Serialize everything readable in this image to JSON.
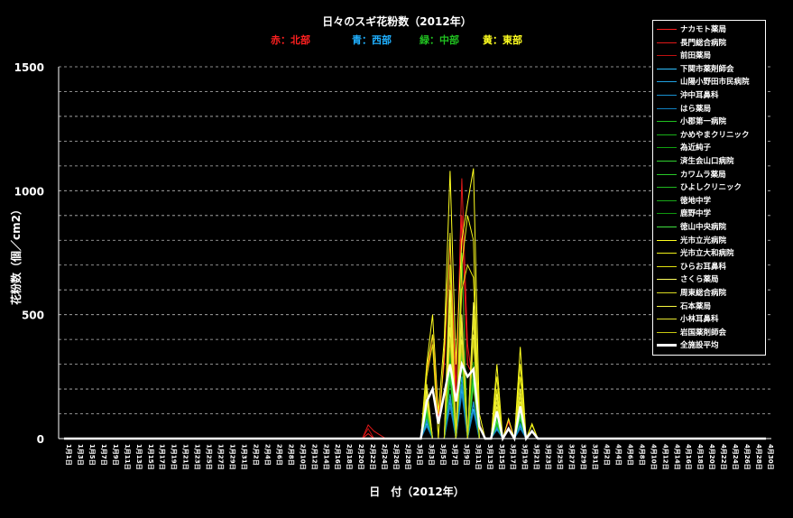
{
  "chart_data": {
    "type": "line",
    "title": "日々のスギ花粉数（2012年）",
    "region_labels": [
      {
        "text": "赤：北部",
        "color": "#ff2020"
      },
      {
        "text": "青：西部",
        "color": "#20b0ff"
      },
      {
        "text": "緑：中部",
        "color": "#20c020"
      },
      {
        "text": "黄：東部",
        "color": "#ffff20"
      }
    ],
    "xlabel": "日　付（2012年）",
    "ylabel": "花粉数（個／cm2）",
    "ylim": [
      0,
      1500
    ],
    "yticks": [
      0,
      500,
      1000,
      1500
    ],
    "grid": "dashed horizontal every 100",
    "legend_position": "top-right",
    "x_tick_labels": [
      "1月1日",
      "1月3日",
      "1月5日",
      "1月7日",
      "1月9日",
      "1月11日",
      "1月13日",
      "1月15日",
      "1月17日",
      "1月19日",
      "1月21日",
      "1月23日",
      "1月25日",
      "1月27日",
      "1月29日",
      "1月31日",
      "2月2日",
      "2月4日",
      "2月6日",
      "2月8日",
      "2月10日",
      "2月12日",
      "2月14日",
      "2月16日",
      "2月18日",
      "2月20日",
      "2月22日",
      "2月24日",
      "2月26日",
      "2月28日",
      "3月1日",
      "3月3日",
      "3月5日",
      "3月7日",
      "3月9日",
      "3月11日",
      "3月13日",
      "3月15日",
      "3月17日",
      "3月19日",
      "3月21日",
      "3月23日",
      "3月25日",
      "3月27日",
      "3月29日",
      "3月31日",
      "4月2日",
      "4月4日",
      "4月6日",
      "4月8日",
      "4月10日",
      "4月12日",
      "4月14日",
      "4月16日",
      "4月18日",
      "4月20日",
      "4月22日",
      "4月24日",
      "4月26日",
      "4月28日",
      "4月30日"
    ],
    "series": [
      {
        "name": "ナカモト薬局",
        "color": "#ff2020",
        "points": {
          "2月22日": 20,
          "3月3日": 250,
          "3月4日": 420,
          "3月5日": 80,
          "3月6日": 300,
          "3月7日": 800,
          "3月8日": 200,
          "3月9日": 900,
          "3月10日": 300,
          "3月11日": 250,
          "3月12日": 60,
          "3月15日": 90,
          "3月17日": 70,
          "3月19日": 110
        }
      },
      {
        "name": "長門総合病院",
        "color": "#e01818",
        "points": {
          "2月22日": 55,
          "2月23日": 30,
          "2月24日": 15,
          "3月3日": 200,
          "3月4": 0,
          "3月7日": 620,
          "3月8日": 150,
          "3月9日": 1050,
          "3月10日": 380,
          "3月11日": 200,
          "3月15日": 80,
          "3月19日": 90
        }
      },
      {
        "name": "前田薬局",
        "color": "#c01010",
        "points": {
          "2月22日": 40,
          "3月3日": 180,
          "3月7日": 500,
          "3月9日": 700,
          "3月11日": 220,
          "3月15日": 70,
          "3月19日": 80
        }
      },
      {
        "name": "下関市薬剤師会",
        "color": "#30c0ff",
        "points": {
          "3月3日": 60,
          "3月7日": 150,
          "3月9日": 200,
          "3月11日": 120,
          "3月15日": 40,
          "3月19日": 50
        }
      },
      {
        "name": "山陽小野田市民病院",
        "color": "#20a0e0",
        "points": {
          "3月3日": 80,
          "3月7日": 180,
          "3月9日": 250,
          "3月11日": 150,
          "3月15日": 50,
          "3月19日": 60
        }
      },
      {
        "name": "沖中耳鼻科",
        "color": "#1890d0",
        "points": {
          "3月3日": 70,
          "3月7日": 160,
          "3月9日": 220,
          "3月11日": 140,
          "3月15日": 45,
          "3月19日": 55
        }
      },
      {
        "name": "はら薬局",
        "color": "#1080c0",
        "points": {
          "3月3日": 50,
          "3月7日": 130,
          "3月9日": 180,
          "3月11日": 110,
          "3月15日": 35,
          "3月19日": 40
        }
      },
      {
        "name": "小郡第一病院",
        "color": "#20c020",
        "points": {
          "3月3日": 150,
          "3月7日": 350,
          "3月9日": 750,
          "3月11日": 300,
          "3月15日": 80,
          "3月19日": 100
        }
      },
      {
        "name": "かめやまクリニック",
        "color": "#18b018",
        "points": {
          "3月3日": 120,
          "3月7日": 300,
          "3月9日": 400,
          "3月11日": 250,
          "3月15日": 70,
          "3月19日": 90
        }
      },
      {
        "name": "為近純子",
        "color": "#10a010",
        "points": {
          "3月3日": 100,
          "3月7日": 280,
          "3月9日": 350,
          "3月11日": 220,
          "3月15日": 60,
          "3月19日": 80
        }
      },
      {
        "name": "済生会山口病院",
        "color": "#30d030",
        "points": {
          "3月3日": 130,
          "3月7日": 320,
          "3月9日": 380,
          "3月11日": 260,
          "3月15日": 75,
          "3月19日": 95
        }
      },
      {
        "name": "カワムラ薬局",
        "color": "#28c828",
        "points": {
          "3月3日": 110,
          "3月7日": 260,
          "3月9日": 330,
          "3月11日": 230,
          "3月15日": 65,
          "3月19日": 85
        }
      },
      {
        "name": "ひよしクリニック",
        "color": "#20b820",
        "points": {
          "3月3日": 90,
          "3月7日": 240,
          "3月9日": 300,
          "3月11日": 210,
          "3月15日": 55,
          "3月19日": 75
        }
      },
      {
        "name": "徳地中学",
        "color": "#18a818",
        "points": {
          "3月3日": 140,
          "3月7日": 330,
          "3月9日": 390,
          "3月11日": 280,
          "3月15日": 85,
          "3月19日": 105
        }
      },
      {
        "name": "鹿野中学",
        "color": "#109810",
        "points": {
          "3月3日": 160,
          "3月7日": 360,
          "3月9日": 420,
          "3月11日": 310,
          "3月15日": 95,
          "3月19日": 115
        }
      },
      {
        "name": "徳山中央病院",
        "color": "#40e040",
        "points": {
          "3月3日": 120,
          "3月7日": 290,
          "3月9日": 360,
          "3月11日": 240,
          "3月15日": 70,
          "3月19日": 90
        }
      },
      {
        "name": "光市立光病院",
        "color": "#ffff20",
        "points": {
          "3月3日": 300,
          "3月4日": 500,
          "3月5日": 100,
          "3月6日": 400,
          "3月7日": 1080,
          "3月8日": 300,
          "3月9日": 800,
          "3月10日": 950,
          "3月11日": 1090,
          "3月12日": 100,
          "3月15日": 300,
          "3月17日": 80,
          "3月19日": 370,
          "3月21日": 60
        }
      },
      {
        "name": "光市立大和病院",
        "color": "#f0f018",
        "points": {
          "3月3日": 280,
          "3月4日": 420,
          "3月6日": 350,
          "3月7日": 830,
          "3月9日": 700,
          "3月10日": 900,
          "3月11日": 800,
          "3月15日": 250,
          "3月19日": 300,
          "3月21日": 55
        }
      },
      {
        "name": "ひらお耳鼻科",
        "color": "#e0e010",
        "points": {
          "3月3日": 250,
          "3月4日": 380,
          "3月7日": 700,
          "3月9日": 600,
          "3月10日": 700,
          "3月11日": 650,
          "3月15日": 200,
          "3月19日": 250
        }
      },
      {
        "name": "さくら薬局",
        "color": "#ffff60",
        "points": {
          "3月3日": 200,
          "3月7日": 600,
          "3月9日": 500,
          "3月11日": 550,
          "3月15日": 180,
          "3月19日": 200
        }
      },
      {
        "name": "周東総合病院",
        "color": "#d8d820",
        "points": {
          "3月3日": 180,
          "3月7日": 500,
          "3月9日": 450,
          "3月11日": 480,
          "3月15日": 150,
          "3月19日": 170
        }
      },
      {
        "name": "石本薬局",
        "color": "#f8f840",
        "points": {
          "3月3日": 160,
          "3月7日": 450,
          "3月9日": 400,
          "3月11日": 420,
          "3月15日": 130,
          "3月19日": 150
        }
      },
      {
        "name": "小林耳鼻科",
        "color": "#e8e830",
        "points": {
          "3月3日": 220,
          "3月7日": 550,
          "3月9日": 480,
          "3月11日": 520,
          "3月15日": 170,
          "3月19日": 190
        }
      },
      {
        "name": "岩国薬剤師会",
        "color": "#c8c810",
        "points": {
          "3月3日": 140,
          "3月7日": 400,
          "3月9日": 380,
          "3月11日": 400,
          "3月15日": 120,
          "3月19日": 140
        }
      },
      {
        "name": "全施設平均",
        "color": "#ffffff",
        "thick": true,
        "points": {
          "3月3日": 150,
          "3月4日": 200,
          "3月5日": 60,
          "3月6日": 180,
          "3月7日": 300,
          "3月8日": 150,
          "3月9日": 300,
          "3月10日": 250,
          "3月11日": 280,
          "3月12日": 50,
          "3月15日": 110,
          "3月17日": 40,
          "3月19日": 130,
          "3月21日": 30
        }
      }
    ]
  }
}
